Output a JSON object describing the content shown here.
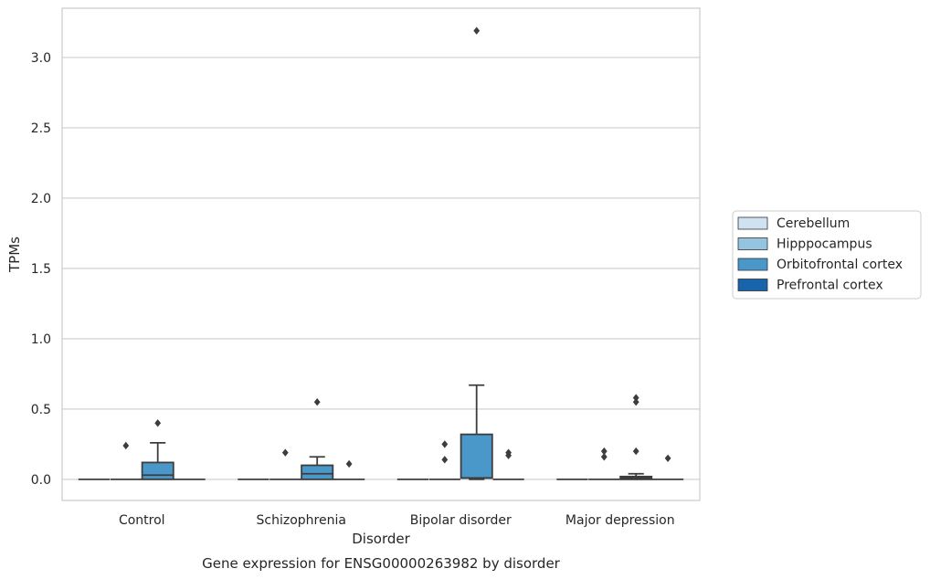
{
  "chart_data": {
    "type": "boxplot",
    "caption": "Gene expression for ENSG00000263982 by disorder",
    "xlabel": "Disorder",
    "ylabel": "TPMs",
    "ylim": [
      -0.15,
      3.35
    ],
    "yticks": [
      0.0,
      0.5,
      1.0,
      1.5,
      2.0,
      2.5,
      3.0
    ],
    "ytick_labels": [
      "0.0",
      "0.5",
      "1.0",
      "1.5",
      "2.0",
      "2.5",
      "3.0"
    ],
    "grid": "horizontal",
    "legend_position": "right",
    "categories": [
      "Control",
      "Schizophrenia",
      "Bipolar disorder",
      "Major depression"
    ],
    "series": [
      {
        "name": "Cerebellum",
        "color": "#d0e1f2",
        "boxes": [
          {
            "category": "Control",
            "q1": 0,
            "median": 0,
            "q3": 0,
            "whisker_low": 0,
            "whisker_high": 0,
            "outliers": []
          },
          {
            "category": "Schizophrenia",
            "q1": 0,
            "median": 0,
            "q3": 0,
            "whisker_low": 0,
            "whisker_high": 0,
            "outliers": []
          },
          {
            "category": "Bipolar disorder",
            "q1": 0,
            "median": 0,
            "q3": 0,
            "whisker_low": 0,
            "whisker_high": 0,
            "outliers": []
          },
          {
            "category": "Major depression",
            "q1": 0,
            "median": 0,
            "q3": 0,
            "whisker_low": 0,
            "whisker_high": 0,
            "outliers": []
          }
        ]
      },
      {
        "name": "Hipppocampus",
        "color": "#94c4df",
        "boxes": [
          {
            "category": "Control",
            "q1": 0,
            "median": 0,
            "q3": 0,
            "whisker_low": 0,
            "whisker_high": 0,
            "outliers": [
              0.24
            ]
          },
          {
            "category": "Schizophrenia",
            "q1": 0,
            "median": 0,
            "q3": 0,
            "whisker_low": 0,
            "whisker_high": 0,
            "outliers": [
              0.19
            ]
          },
          {
            "category": "Bipolar disorder",
            "q1": 0,
            "median": 0,
            "q3": 0,
            "whisker_low": 0,
            "whisker_high": 0,
            "outliers": [
              0.14,
              0.25
            ]
          },
          {
            "category": "Major depression",
            "q1": 0,
            "median": 0,
            "q3": 0,
            "whisker_low": 0,
            "whisker_high": 0,
            "outliers": [
              0.16,
              0.2
            ]
          }
        ]
      },
      {
        "name": "Orbitofrontal cortex",
        "color": "#4a98c9",
        "boxes": [
          {
            "category": "Control",
            "q1": 0,
            "median": 0.03,
            "q3": 0.12,
            "whisker_low": 0,
            "whisker_high": 0.26,
            "outliers": [
              0.4
            ]
          },
          {
            "category": "Schizophrenia",
            "q1": 0,
            "median": 0.04,
            "q3": 0.1,
            "whisker_low": 0,
            "whisker_high": 0.16,
            "outliers": [
              0.55
            ]
          },
          {
            "category": "Bipolar disorder",
            "q1": 0.01,
            "median": 0.01,
            "q3": 0.32,
            "whisker_low": 0,
            "whisker_high": 0.67,
            "outliers": [
              3.19
            ]
          },
          {
            "category": "Major depression",
            "q1": 0,
            "median": 0.01,
            "q3": 0.02,
            "whisker_low": 0,
            "whisker_high": 0.04,
            "outliers": [
              0.2,
              0.55,
              0.58
            ]
          }
        ]
      },
      {
        "name": "Prefrontal cortex",
        "color": "#1764ab",
        "boxes": [
          {
            "category": "Control",
            "q1": 0,
            "median": 0,
            "q3": 0,
            "whisker_low": 0,
            "whisker_high": 0,
            "outliers": []
          },
          {
            "category": "Schizophrenia",
            "q1": 0,
            "median": 0,
            "q3": 0,
            "whisker_low": 0,
            "whisker_high": 0,
            "outliers": [
              0.11
            ]
          },
          {
            "category": "Bipolar disorder",
            "q1": 0,
            "median": 0,
            "q3": 0,
            "whisker_low": 0,
            "whisker_high": 0,
            "outliers": [
              0.17,
              0.19
            ]
          },
          {
            "category": "Major depression",
            "q1": 0,
            "median": 0,
            "q3": 0,
            "whisker_low": 0,
            "whisker_high": 0,
            "outliers": [
              0.15
            ]
          }
        ]
      }
    ]
  }
}
